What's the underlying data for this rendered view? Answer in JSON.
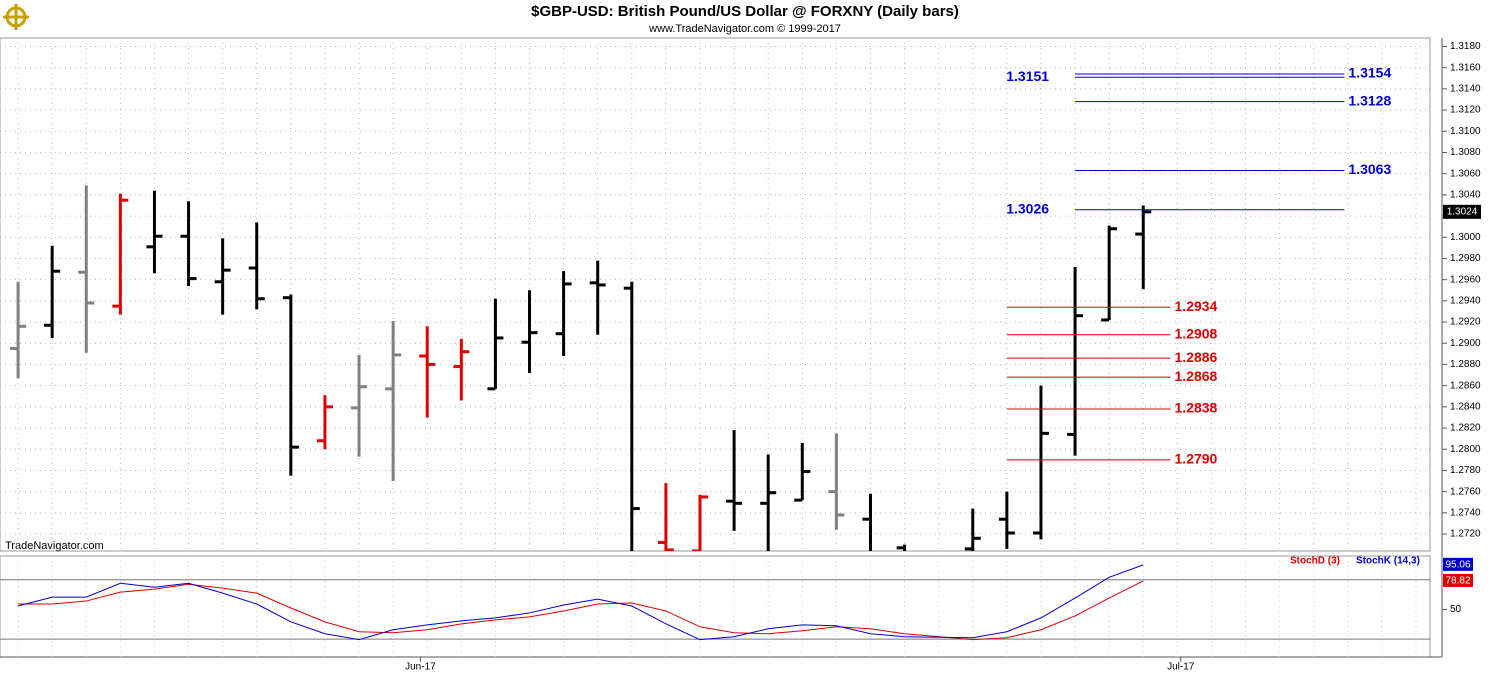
{
  "chart_data": [
    {
      "type": "ohlc",
      "title": "$GBP-USD:  British Pound/US Dollar @ FORXNY  (Daily bars)",
      "subtitle": "www.TradeNavigator.com © 1999-2017",
      "watermark": "TradeNavigator.com",
      "x": [
        0,
        1,
        2,
        3,
        4,
        5,
        6,
        7,
        8,
        9,
        10,
        11,
        12,
        13,
        14,
        15,
        16,
        17,
        18,
        19,
        20,
        21,
        22,
        23,
        24,
        25,
        26,
        28,
        29,
        30,
        31,
        32,
        33
      ],
      "open": [
        1.2895,
        1.2917,
        1.2967,
        1.2935,
        1.2991,
        1.3001,
        1.2958,
        1.2971,
        1.2943,
        1.2808,
        1.2839,
        1.2857,
        1.2888,
        1.2878,
        1.2857,
        1.2901,
        1.2909,
        1.2957,
        1.2952,
        1.2712,
        1.2704,
        1.2751,
        1.2749,
        1.2752,
        1.276,
        1.2734,
        1.2707,
        1.2706,
        1.2734,
        1.2721,
        1.2814,
        1.2922,
        1.3003
      ],
      "high": [
        1.2958,
        1.2992,
        1.3049,
        1.3041,
        1.3044,
        1.3034,
        1.2999,
        1.3014,
        1.2946,
        1.2851,
        1.2889,
        1.2921,
        1.2916,
        1.2904,
        1.2942,
        1.295,
        1.2968,
        1.2978,
        1.2958,
        1.2768,
        1.2757,
        1.2818,
        1.2795,
        1.2806,
        1.2815,
        1.2758,
        1.271,
        1.2744,
        1.276,
        1.286,
        1.2972,
        1.3011,
        1.303
      ],
      "low": [
        1.2867,
        1.2905,
        1.2891,
        1.2927,
        1.2966,
        1.2954,
        1.2927,
        1.2932,
        1.2775,
        1.28,
        1.2793,
        1.277,
        1.283,
        1.2846,
        1.2857,
        1.2872,
        1.2888,
        1.2908,
        1.2696,
        1.27,
        1.27,
        1.2723,
        1.27,
        1.2752,
        1.2724,
        1.27,
        1.27,
        1.27,
        1.2706,
        1.2715,
        1.2794,
        1.2922,
        1.2951
      ],
      "close": [
        1.2916,
        1.2968,
        1.2938,
        1.3035,
        1.3001,
        1.2961,
        1.2969,
        1.2942,
        1.2802,
        1.284,
        1.2859,
        1.2889,
        1.288,
        1.2892,
        1.2905,
        1.291,
        1.2956,
        1.2955,
        1.2744,
        1.2705,
        1.2755,
        1.2749,
        1.2759,
        1.2779,
        1.2738,
        1.2702,
        1.2702,
        1.2716,
        1.2721,
        1.2815,
        1.2926,
        1.3008,
        1.3024
      ],
      "colors": [
        "#808080",
        "#000000",
        "#808080",
        "#e00000",
        "#000000",
        "#000000",
        "#000000",
        "#000000",
        "#000000",
        "#e00000",
        "#808080",
        "#808080",
        "#e00000",
        "#e00000",
        "#000000",
        "#000000",
        "#000000",
        "#000000",
        "#000000",
        "#e00000",
        "#e00000",
        "#000000",
        "#000000",
        "#000000",
        "#808080",
        "#000000",
        "#000000",
        "#000000",
        "#000000",
        "#000000",
        "#000000",
        "#000000",
        "#000000"
      ],
      "xlim": [
        -0.53,
        41.41
      ],
      "xticks": [
        {
          "value": 11.8,
          "label": "Jun-17"
        },
        {
          "value": 34.1,
          "label": "Jul-17"
        }
      ],
      "ylim": [
        1.2704,
        1.3188
      ],
      "yticks": [
        {
          "value": 1.272,
          "label": "1.2720"
        },
        {
          "value": 1.274,
          "label": "1.2740"
        },
        {
          "value": 1.276,
          "label": "1.2760"
        },
        {
          "value": 1.278,
          "label": "1.2780"
        },
        {
          "value": 1.28,
          "label": "1.2800"
        },
        {
          "value": 1.282,
          "label": "1.2820"
        },
        {
          "value": 1.284,
          "label": "1.2840"
        },
        {
          "value": 1.286,
          "label": "1.2860"
        },
        {
          "value": 1.288,
          "label": "1.2880"
        },
        {
          "value": 1.29,
          "label": "1.2900"
        },
        {
          "value": 1.292,
          "label": "1.2920"
        },
        {
          "value": 1.294,
          "label": "1.2940"
        },
        {
          "value": 1.296,
          "label": "1.2960"
        },
        {
          "value": 1.298,
          "label": "1.2980"
        },
        {
          "value": 1.3,
          "label": "1.3000"
        },
        {
          "value": 1.302,
          "label": "1.3020"
        },
        {
          "value": 1.304,
          "label": "1.3040"
        },
        {
          "value": 1.306,
          "label": "1.3060"
        },
        {
          "value": 1.308,
          "label": "1.3080"
        },
        {
          "value": 1.31,
          "label": "1.3100"
        },
        {
          "value": 1.312,
          "label": "1.3120"
        },
        {
          "value": 1.314,
          "label": "1.3140"
        },
        {
          "value": 1.316,
          "label": "1.3160"
        },
        {
          "value": 1.318,
          "label": "1.3180"
        }
      ],
      "grid": true,
      "levels": [
        {
          "value": 1.3154,
          "color": "#0000cc"
        },
        {
          "value": 1.3151,
          "color": "#0000cc"
        },
        {
          "value": 1.3128,
          "color": "#0000cc"
        },
        {
          "value": 1.3063,
          "color": "#0000cc"
        },
        {
          "value": 1.3026,
          "color": "#0000cc"
        },
        {
          "value": 1.2934,
          "color": "#dd0000"
        },
        {
          "value": 1.2908,
          "color": "#dd0000"
        },
        {
          "value": 1.2886,
          "color": "#dd0000"
        },
        {
          "value": 1.2868,
          "color": "#dd0000"
        },
        {
          "value": 1.2838,
          "color": "#dd0000"
        },
        {
          "value": 1.279,
          "label": "1.2790",
          "color": "#dd0000"
        }
      ]
    },
    {
      "type": "line",
      "x": [
        0,
        1,
        2,
        3,
        4,
        5,
        6,
        7,
        8,
        9,
        10,
        11,
        12,
        13,
        14,
        15,
        16,
        17,
        18,
        19,
        20,
        21,
        22,
        23,
        24,
        25,
        26,
        28,
        29,
        30,
        31,
        32,
        33
      ],
      "xlim": [
        -0.53,
        41.41
      ],
      "ylim": [
        2,
        104
      ],
      "yticks": [
        50
      ],
      "reference_lines": [
        20,
        80
      ],
      "series": [
        {
          "name": "StochD (3)",
          "color": "#dd0000",
          "values": [
            55.5,
            55.5,
            58.5,
            67.5,
            70.5,
            75.5,
            71.5,
            66.5,
            51.5,
            37.5,
            27.5,
            26.5,
            29.5,
            35.5,
            39.5,
            42.5,
            48.5,
            55.5,
            56.5,
            48.5,
            32.5,
            26.5,
            25.5,
            28.5,
            32.5,
            30.5,
            25.5,
            19.5,
            21.5,
            29.5,
            43.5,
            61.5,
            78.82
          ]
        },
        {
          "name": "StochK (14,3)",
          "color": "#0000cc",
          "values": [
            53.5,
            62.5,
            62.5,
            76.5,
            72.5,
            76.5,
            66.5,
            55.5,
            37.5,
            25.5,
            19.5,
            29.5,
            34.5,
            38.5,
            41.5,
            46.5,
            54.5,
            60.5,
            53.5,
            35.5,
            19.5,
            22.5,
            30.5,
            34.5,
            33.5,
            25.5,
            22.5,
            21.5,
            27.5,
            41.5,
            61.5,
            82.5,
            95.06
          ]
        }
      ]
    }
  ]
}
